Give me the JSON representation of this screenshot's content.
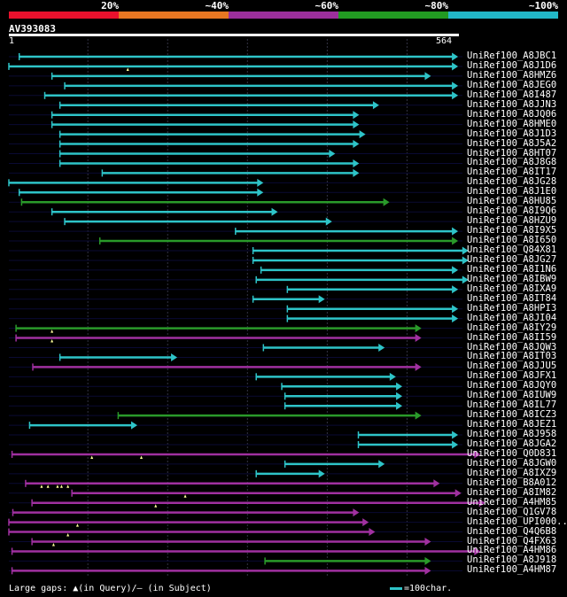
{
  "legend": {
    "labels": [
      "20%",
      "~40%",
      "~60%",
      "~80%",
      "~100%"
    ],
    "colors": [
      "#e8112d",
      "#e87722",
      "#9c2f9c",
      "#229b22",
      "#22b8c8"
    ]
  },
  "query": {
    "id": "AV393083",
    "start": "1",
    "end": "564",
    "length": 564
  },
  "colors": {
    "cyan": "#2ec4c8",
    "green": "#2a9a2a",
    "magenta": "#a030a0",
    "gap": "#ffff99",
    "grid": "#334"
  },
  "footer": {
    "gaps_label": "Large gaps: ▲(in Query)/— (in Subject)",
    "scale_label": "=100char."
  },
  "hits": [
    {
      "name": "UniRef100_A8JBC1",
      "start": 14,
      "end": 564,
      "color": "cyan",
      "gaps": []
    },
    {
      "name": "UniRef100_A8J1D6",
      "start": 1,
      "end": 564,
      "color": "cyan",
      "gaps": [
        150
      ]
    },
    {
      "name": "UniRef100_A8HMZ6",
      "start": 55,
      "end": 530,
      "color": "cyan",
      "gaps": []
    },
    {
      "name": "UniRef100_A8JEG0",
      "start": 71,
      "end": 564,
      "color": "cyan",
      "gaps": []
    },
    {
      "name": "UniRef100_A8I487",
      "start": 46,
      "end": 564,
      "color": "cyan",
      "gaps": []
    },
    {
      "name": "UniRef100_A8JJN3",
      "start": 65,
      "end": 465,
      "color": "cyan",
      "gaps": []
    },
    {
      "name": "UniRef100_A8JQ06",
      "start": 55,
      "end": 440,
      "color": "cyan",
      "gaps": []
    },
    {
      "name": "UniRef100_A8HME0",
      "start": 55,
      "end": 440,
      "color": "cyan",
      "gaps": []
    },
    {
      "name": "UniRef100_A8J1D3",
      "start": 65,
      "end": 448,
      "color": "cyan",
      "gaps": []
    },
    {
      "name": "UniRef100_A8J5A2",
      "start": 65,
      "end": 440,
      "color": "cyan",
      "gaps": []
    },
    {
      "name": "UniRef100_A8HT07",
      "start": 65,
      "end": 410,
      "color": "cyan",
      "gaps": []
    },
    {
      "name": "UniRef100_A8J8G8",
      "start": 65,
      "end": 440,
      "color": "cyan",
      "gaps": []
    },
    {
      "name": "UniRef100_A8IT17",
      "start": 118,
      "end": 440,
      "color": "cyan",
      "gaps": []
    },
    {
      "name": "UniRef100_A8JG28",
      "start": 1,
      "end": 320,
      "color": "cyan",
      "gaps": []
    },
    {
      "name": "UniRef100_A8J1E0",
      "start": 14,
      "end": 320,
      "color": "cyan",
      "gaps": []
    },
    {
      "name": "UniRef100_A8HU85",
      "start": 17,
      "end": 478,
      "color": "green",
      "gaps": []
    },
    {
      "name": "UniRef100_A8I9Q6",
      "start": 55,
      "end": 338,
      "color": "cyan",
      "gaps": []
    },
    {
      "name": "UniRef100_A8HZU9",
      "start": 71,
      "end": 406,
      "color": "cyan",
      "gaps": []
    },
    {
      "name": "UniRef100_A8I9X5",
      "start": 285,
      "end": 564,
      "color": "cyan",
      "gaps": []
    },
    {
      "name": "UniRef100_A8I650",
      "start": 115,
      "end": 564,
      "color": "green",
      "gaps": []
    },
    {
      "name": "UniRef100_Q84X81",
      "start": 307,
      "end": 577,
      "color": "cyan",
      "gaps": []
    },
    {
      "name": "UniRef100_A8JG27",
      "start": 307,
      "end": 577,
      "color": "cyan",
      "gaps": []
    },
    {
      "name": "UniRef100_A8I1N6",
      "start": 317,
      "end": 564,
      "color": "cyan",
      "gaps": []
    },
    {
      "name": "UniRef100_A8IBW9",
      "start": 311,
      "end": 577,
      "color": "cyan",
      "gaps": []
    },
    {
      "name": "UniRef100_A8IXA9",
      "start": 350,
      "end": 564,
      "color": "cyan",
      "gaps": []
    },
    {
      "name": "UniRef100_A8IT84",
      "start": 307,
      "end": 397,
      "color": "cyan",
      "gaps": []
    },
    {
      "name": "UniRef100_A8HPI3",
      "start": 350,
      "end": 564,
      "color": "cyan",
      "gaps": []
    },
    {
      "name": "UniRef100_A8JI04",
      "start": 350,
      "end": 564,
      "color": "cyan",
      "gaps": []
    },
    {
      "name": "UniRef100_A8IY29",
      "start": 10,
      "end": 518,
      "color": "green",
      "gaps": [
        55
      ]
    },
    {
      "name": "UniRef100_A8II59",
      "start": 10,
      "end": 518,
      "color": "magenta",
      "gaps": [
        55
      ]
    },
    {
      "name": "UniRef100_A8JQW3",
      "start": 320,
      "end": 472,
      "color": "cyan",
      "gaps": []
    },
    {
      "name": "UniRef100_A8IT03",
      "start": 65,
      "end": 212,
      "color": "cyan",
      "gaps": []
    },
    {
      "name": "UniRef100_A8JJU5",
      "start": 31,
      "end": 518,
      "color": "magenta",
      "gaps": []
    },
    {
      "name": "UniRef100_A8JFX1",
      "start": 311,
      "end": 486,
      "color": "cyan",
      "gaps": []
    },
    {
      "name": "UniRef100_A8JQY0",
      "start": 343,
      "end": 494,
      "color": "cyan",
      "gaps": []
    },
    {
      "name": "UniRef100_A8IUW9",
      "start": 347,
      "end": 494,
      "color": "cyan",
      "gaps": []
    },
    {
      "name": "UniRef100_A8IL77",
      "start": 347,
      "end": 494,
      "color": "cyan",
      "gaps": []
    },
    {
      "name": "UniRef100_A8ICZ3",
      "start": 138,
      "end": 518,
      "color": "green",
      "gaps": []
    },
    {
      "name": "UniRef100_A8JEZ1",
      "start": 27,
      "end": 162,
      "color": "cyan",
      "gaps": []
    },
    {
      "name": "UniRef100_A8J958",
      "start": 439,
      "end": 564,
      "color": "cyan",
      "gaps": []
    },
    {
      "name": "UniRef100_A8JGA2",
      "start": 439,
      "end": 564,
      "color": "cyan",
      "gaps": []
    },
    {
      "name": "UniRef100_Q0D831",
      "start": 5,
      "end": 592,
      "color": "magenta",
      "gaps": [
        105,
        167
      ]
    },
    {
      "name": "UniRef100_A8JGW0",
      "start": 347,
      "end": 472,
      "color": "cyan",
      "gaps": []
    },
    {
      "name": "UniRef100_A8IXZ9",
      "start": 311,
      "end": 397,
      "color": "cyan",
      "gaps": []
    },
    {
      "name": "UniRef100_B8A012",
      "start": 22,
      "end": 541,
      "color": "magenta",
      "gaps": [
        42,
        50,
        62,
        67,
        75
      ]
    },
    {
      "name": "UniRef100_A8IM82",
      "start": 80,
      "end": 568,
      "color": "magenta",
      "gaps": [
        222
      ]
    },
    {
      "name": "UniRef100_A4HM85",
      "start": 30,
      "end": 598,
      "color": "magenta",
      "gaps": [
        185
      ]
    },
    {
      "name": "UniRef100_Q1GV78",
      "start": 6,
      "end": 440,
      "color": "magenta",
      "gaps": []
    },
    {
      "name": "UniRef100_UPI000..",
      "start": 1,
      "end": 452,
      "color": "magenta",
      "gaps": [
        87
      ]
    },
    {
      "name": "UniRef100_Q4Q6B8",
      "start": 1,
      "end": 460,
      "color": "magenta",
      "gaps": [
        75
      ]
    },
    {
      "name": "UniRef100_Q4FX63",
      "start": 30,
      "end": 530,
      "color": "magenta",
      "gaps": [
        57
      ]
    },
    {
      "name": "UniRef100_A4HM86",
      "start": 5,
      "end": 592,
      "color": "magenta",
      "gaps": []
    },
    {
      "name": "UniRef100_A8J918",
      "start": 322,
      "end": 530,
      "color": "green",
      "gaps": []
    },
    {
      "name": "UniRef100_A4HM87",
      "start": 5,
      "end": 530,
      "color": "magenta",
      "gaps": []
    }
  ]
}
